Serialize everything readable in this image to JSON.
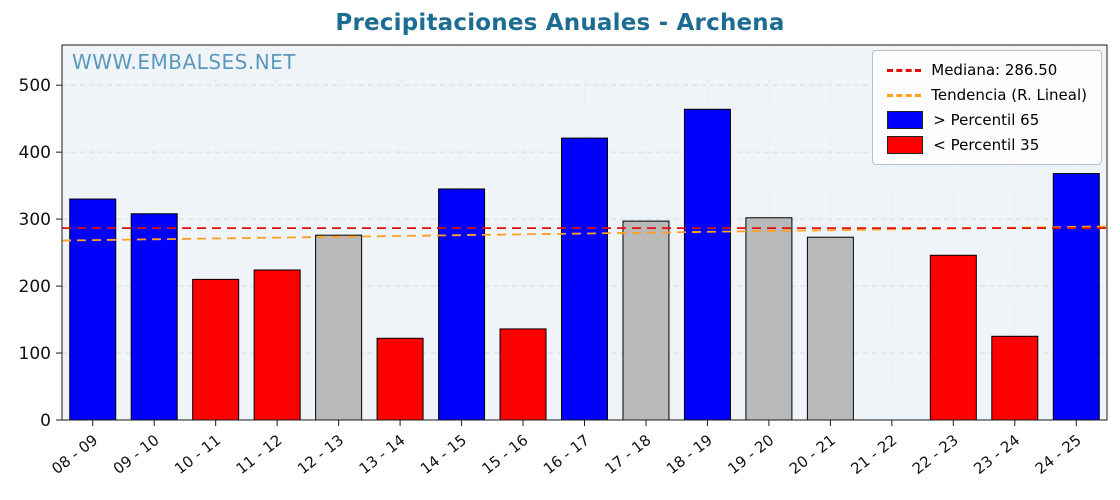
{
  "chart_data": {
    "type": "bar",
    "title": "Precipitaciones Anuales - Archena",
    "watermark": "WWW.EMBALSES.NET",
    "categories": [
      "08 - 09",
      "09 - 10",
      "10 - 11",
      "11 - 12",
      "12 - 13",
      "13 - 14",
      "14 - 15",
      "15 - 16",
      "16 - 17",
      "17 - 18",
      "18 - 19",
      "19 - 20",
      "20 - 21",
      "21 - 22",
      "22 - 23",
      "23 - 24",
      "24 - 25"
    ],
    "values": [
      330,
      308,
      210,
      224,
      276,
      122,
      345,
      136,
      421,
      297,
      464,
      302,
      273,
      null,
      246,
      125,
      368
    ],
    "bar_classes": [
      "above",
      "above",
      "below",
      "below",
      "mid",
      "below",
      "above",
      "below",
      "above",
      "mid",
      "above",
      "mid",
      "mid",
      null,
      "below",
      "below",
      "above"
    ],
    "median": 286.5,
    "trend": {
      "start": 268,
      "end": 289
    },
    "ylim": [
      0,
      560
    ],
    "yticks": [
      0,
      100,
      200,
      300,
      400,
      500
    ],
    "legend": [
      {
        "type": "line",
        "color": "#e01010",
        "label": "Mediana: 286.50"
      },
      {
        "type": "line",
        "color": "#ffa020",
        "label": "Tendencia (R. Lineal)"
      },
      {
        "type": "swatch",
        "color": "#0000ff",
        "label": "> Percentil 65"
      },
      {
        "type": "swatch",
        "color": "#ff0000",
        "label": "< Percentil 35"
      }
    ],
    "colors": {
      "above": "#0000ff",
      "below": "#ff0000",
      "mid": "#b9b9b9",
      "median": "#e01010",
      "trend": "#ffa020",
      "plot_bg": "#eff4f8",
      "grid": "#d7dee4",
      "title": "#1d6d93",
      "watermark": "#4d8fb5"
    },
    "xlabel": "",
    "ylabel": ""
  }
}
